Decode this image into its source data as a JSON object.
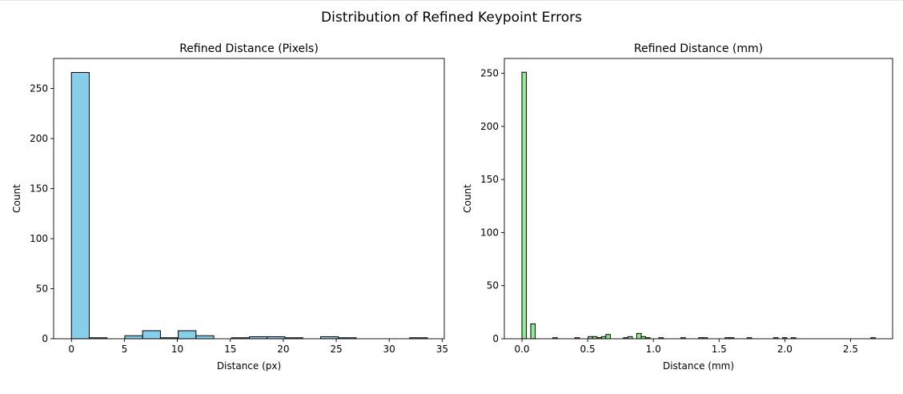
{
  "suptitle": "Distribution of Refined Keypoint Errors",
  "chart_data": [
    {
      "type": "bar",
      "title": "Refined Distance (Pixels)",
      "xlabel": "Distance (px)",
      "ylabel": "Count",
      "color": "#87ceeb",
      "edgecolor": "#000000",
      "xlim": [
        -1.68,
        35.2
      ],
      "ylim": [
        0,
        280
      ],
      "xticks": [
        0,
        5,
        10,
        15,
        20,
        25,
        30,
        35
      ],
      "yticks": [
        0,
        50,
        100,
        150,
        200,
        250
      ],
      "grid": false,
      "bins": [
        {
          "x0": 0.0,
          "x1": 1.68,
          "count": 266
        },
        {
          "x0": 1.68,
          "x1": 3.36,
          "count": 1
        },
        {
          "x0": 5.04,
          "x1": 6.72,
          "count": 3
        },
        {
          "x0": 6.72,
          "x1": 8.4,
          "count": 8
        },
        {
          "x0": 8.4,
          "x1": 10.08,
          "count": 1
        },
        {
          "x0": 10.08,
          "x1": 11.76,
          "count": 8
        },
        {
          "x0": 11.76,
          "x1": 13.44,
          "count": 3
        },
        {
          "x0": 15.12,
          "x1": 16.8,
          "count": 1
        },
        {
          "x0": 16.8,
          "x1": 18.48,
          "count": 2
        },
        {
          "x0": 18.48,
          "x1": 20.16,
          "count": 2
        },
        {
          "x0": 20.16,
          "x1": 21.84,
          "count": 1
        },
        {
          "x0": 23.52,
          "x1": 25.2,
          "count": 2
        },
        {
          "x0": 25.2,
          "x1": 26.88,
          "count": 1
        },
        {
          "x0": 31.92,
          "x1": 33.6,
          "count": 1
        }
      ]
    },
    {
      "type": "bar",
      "title": "Refined Distance (mm)",
      "xlabel": "Distance (mm)",
      "ylabel": "Count",
      "color": "#90ee90",
      "edgecolor": "#000000",
      "xlim": [
        -0.134,
        2.82
      ],
      "ylim": [
        0,
        264
      ],
      "xticks": [
        0.0,
        0.5,
        1.0,
        1.5,
        2.0,
        2.5
      ],
      "xtick_labels": [
        "0.0",
        "0.5",
        "1.0",
        "1.5",
        "2.0",
        "2.5"
      ],
      "yticks": [
        0,
        50,
        100,
        150,
        200,
        250
      ],
      "grid": false,
      "bins": [
        {
          "x0": 0.0,
          "x1": 0.0336,
          "count": 251
        },
        {
          "x0": 0.0672,
          "x1": 0.1008,
          "count": 14
        },
        {
          "x0": 0.2352,
          "x1": 0.2688,
          "count": 1
        },
        {
          "x0": 0.4032,
          "x1": 0.4368,
          "count": 1
        },
        {
          "x0": 0.504,
          "x1": 0.5376,
          "count": 2
        },
        {
          "x0": 0.5376,
          "x1": 0.5712,
          "count": 2
        },
        {
          "x0": 0.5712,
          "x1": 0.6048,
          "count": 1
        },
        {
          "x0": 0.6048,
          "x1": 0.6384,
          "count": 2
        },
        {
          "x0": 0.6384,
          "x1": 0.672,
          "count": 4
        },
        {
          "x0": 0.7728,
          "x1": 0.8064,
          "count": 1
        },
        {
          "x0": 0.8064,
          "x1": 0.84,
          "count": 2
        },
        {
          "x0": 0.8736,
          "x1": 0.9072,
          "count": 5
        },
        {
          "x0": 0.9072,
          "x1": 0.9408,
          "count": 2
        },
        {
          "x0": 0.9408,
          "x1": 0.9744,
          "count": 1
        },
        {
          "x0": 1.0416,
          "x1": 1.0752,
          "count": 1
        },
        {
          "x0": 1.2096,
          "x1": 1.2432,
          "count": 1
        },
        {
          "x0": 1.344,
          "x1": 1.3776,
          "count": 1
        },
        {
          "x0": 1.3776,
          "x1": 1.4112,
          "count": 1
        },
        {
          "x0": 1.5456,
          "x1": 1.5792,
          "count": 1
        },
        {
          "x0": 1.5792,
          "x1": 1.6128,
          "count": 1
        },
        {
          "x0": 1.7136,
          "x1": 1.7472,
          "count": 1
        },
        {
          "x0": 1.9152,
          "x1": 1.9488,
          "count": 1
        },
        {
          "x0": 1.9824,
          "x1": 2.016,
          "count": 1
        },
        {
          "x0": 2.0496,
          "x1": 2.0832,
          "count": 1
        },
        {
          "x0": 2.6544,
          "x1": 2.688,
          "count": 1
        }
      ]
    }
  ]
}
